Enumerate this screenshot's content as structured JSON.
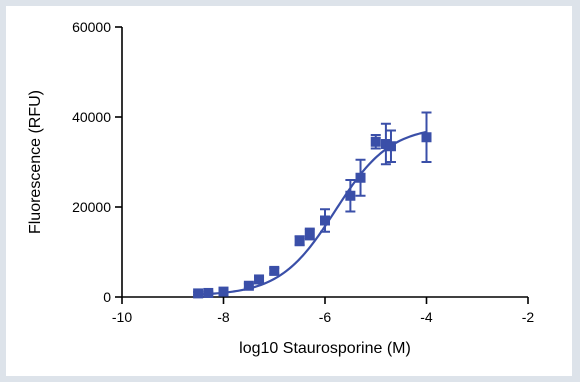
{
  "chart_data": {
    "type": "scatter",
    "title": "",
    "xlabel": "log10 Staurosporine (M)",
    "ylabel": "Fluorescence (RFU)",
    "xlim": [
      -10,
      -2
    ],
    "ylim": [
      0,
      60000
    ],
    "x_ticks": [
      -10,
      -8,
      -6,
      -4,
      -2
    ],
    "x_tick_labels": [
      "-10",
      "-8",
      "-6",
      "-4",
      "-2"
    ],
    "y_ticks": [
      0,
      20000,
      40000,
      60000
    ],
    "y_tick_labels": [
      "0",
      "20000",
      "40000",
      "60000"
    ],
    "grid": false,
    "legend": "none",
    "marker": "square",
    "series": [
      {
        "color": "#3a4fa8",
        "points": [
          {
            "x": -8.5,
            "y": 800,
            "err": 300
          },
          {
            "x": -8.3,
            "y": 900,
            "err": 300
          },
          {
            "x": -8.0,
            "y": 1200,
            "err": 400
          },
          {
            "x": -7.5,
            "y": 2500,
            "err": 500
          },
          {
            "x": -7.3,
            "y": 3900,
            "err": 500
          },
          {
            "x": -7.0,
            "y": 5800,
            "err": 600
          },
          {
            "x": -6.5,
            "y": 12500,
            "err": 1000
          },
          {
            "x": -6.3,
            "y": 14000,
            "err": 1200
          },
          {
            "x": -6.0,
            "y": 17000,
            "err": 2500
          },
          {
            "x": -5.5,
            "y": 22500,
            "err": 3500
          },
          {
            "x": -5.3,
            "y": 26500,
            "err": 4000
          },
          {
            "x": -5.0,
            "y": 34500,
            "err": 1500
          },
          {
            "x": -4.8,
            "y": 34000,
            "err": 4500
          },
          {
            "x": -4.7,
            "y": 33500,
            "err": 3500
          },
          {
            "x": -4.0,
            "y": 35500,
            "err": 5500
          }
        ],
        "fit": {
          "model": "sigmoid",
          "bottom": 300,
          "top": 38000,
          "log_ec50": -5.8,
          "hill": 0.8,
          "x_range": [
            -8.5,
            -4.0
          ]
        }
      }
    ]
  }
}
